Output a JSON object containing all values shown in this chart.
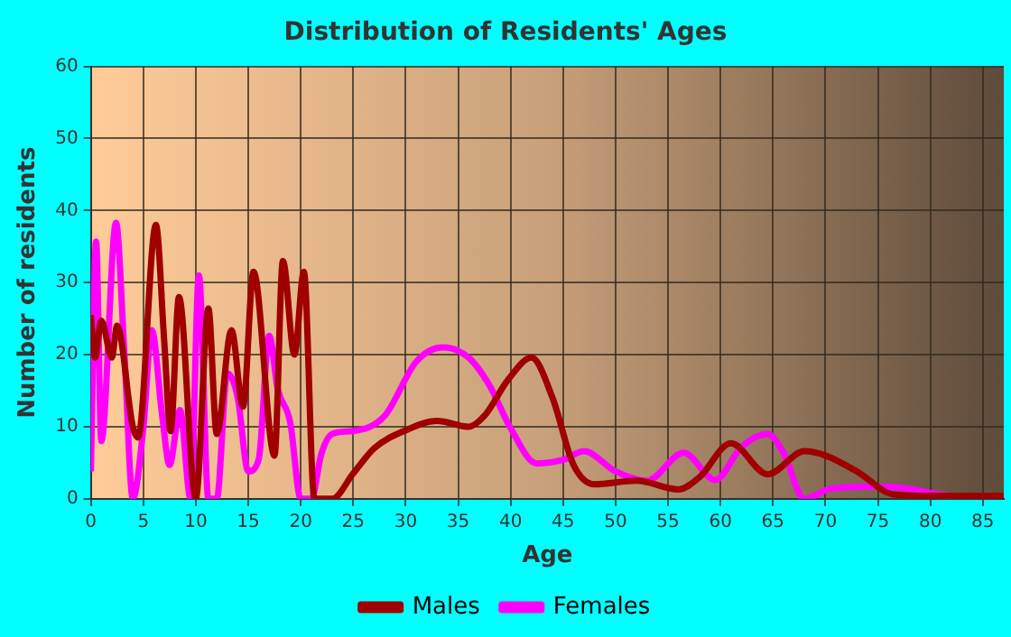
{
  "chart_data": {
    "type": "line",
    "title": "Distribution of Residents' Ages",
    "xlabel": "Age",
    "ylabel": "Number of residents",
    "xlim": [
      0,
      87
    ],
    "xticks": [
      0,
      5,
      10,
      15,
      20,
      25,
      30,
      35,
      40,
      45,
      50,
      55,
      60,
      65,
      70,
      75,
      80,
      85
    ],
    "ylim": [
      0,
      60
    ],
    "yticks": [
      0,
      10,
      20,
      30,
      40,
      50,
      60
    ],
    "grid": true,
    "legend": "bottom",
    "marker": "none",
    "line_style": "solid",
    "series": [
      {
        "name": "Males",
        "color": "#a00000",
        "x": [
          0,
          0.4,
          1,
          2,
          2.5,
          4,
          4.5,
          6.2,
          7,
          7.6,
          8.4,
          10,
          11.2,
          12,
          13.4,
          14.5,
          15.5,
          17.5,
          18.3,
          19.4,
          20.3,
          21.3,
          23,
          25,
          27,
          30,
          33,
          36,
          37.5,
          39.8,
          42,
          44,
          46,
          48,
          52,
          56,
          58,
          61,
          64.5,
          68,
          70,
          73,
          76.5,
          80,
          87
        ],
        "values": [
          25.5,
          19.6,
          24.7,
          19.6,
          24,
          10,
          8.5,
          38,
          21.7,
          9.4,
          28,
          0,
          26.4,
          9,
          23.4,
          12.8,
          31.5,
          6,
          33,
          20,
          31.5,
          0,
          0,
          3.5,
          7,
          9.5,
          10.8,
          10,
          11.5,
          16.6,
          19.6,
          14,
          4.7,
          2,
          2.5,
          1.3,
          3,
          7.7,
          3.4,
          6.6,
          6,
          3.8,
          0.6,
          0.4,
          0.4
        ]
      },
      {
        "name": "Females",
        "color": "#ff00ff",
        "x": [
          0,
          0.5,
          1,
          2.4,
          3.2,
          4,
          5,
          5.8,
          6.8,
          7.5,
          8.5,
          9.5,
          10.3,
          11.2,
          12,
          13,
          14,
          15,
          16,
          17,
          17.8,
          19,
          20,
          21,
          22,
          23,
          25,
          28,
          31,
          33.5,
          36,
          38,
          40,
          42.5,
          45,
          47,
          50,
          53,
          56.5,
          59.5,
          62,
          64.5,
          66,
          68,
          70.5,
          75,
          78,
          80,
          82
        ],
        "values": [
          3.8,
          35.7,
          8,
          38.3,
          20,
          0,
          9.8,
          23.4,
          11.5,
          4.7,
          12.3,
          0,
          31,
          0,
          0,
          17.4,
          14,
          3.8,
          5.5,
          22.6,
          15.3,
          10.6,
          0,
          0,
          6.4,
          9,
          9.4,
          11.5,
          19,
          21,
          19.6,
          15.7,
          9.8,
          4.9,
          5.4,
          6.6,
          3.8,
          2.5,
          6.4,
          2.6,
          7.2,
          9,
          6.4,
          0,
          1.4,
          1.7,
          1.4,
          0.8,
          0.4
        ]
      }
    ]
  }
}
